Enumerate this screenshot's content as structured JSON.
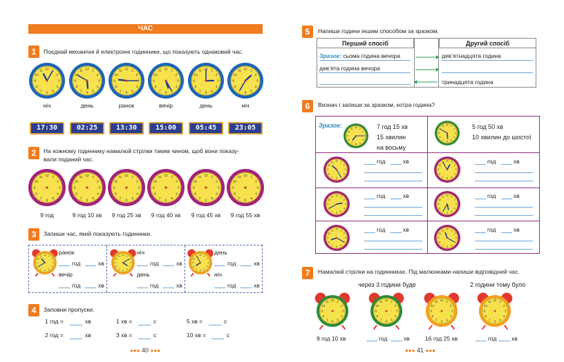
{
  "title": "ЧАС",
  "tasks": {
    "t1": {
      "num": "1",
      "text": "Поєднай механічні й електронні годинники, що показують однаковий час.",
      "labels": [
        "ніч",
        "день",
        "ранок",
        "вечір",
        "день",
        "ніч"
      ],
      "digital": [
        "17:30",
        "02:25",
        "13:30",
        "15:00",
        "05:45",
        "23:05"
      ]
    },
    "t2": {
      "num": "2",
      "text1": "На кожному годиннику намалюй стрілки таким чином, щоб вони показу-",
      "text2": "вали поданий час.",
      "labels": [
        "9 год",
        "9 год 10 хв",
        "9 год 25 хв",
        "9 год 40 хв",
        "9 год 45 хв",
        "9 год 55 хв"
      ]
    },
    "t3": {
      "num": "3",
      "text": "Запиши час, який показують годинники.",
      "boxes": [
        {
          "top": "ранок",
          "bottom": "вечір"
        },
        {
          "top": "ніч",
          "bottom": "день"
        },
        {
          "top": "день",
          "bottom": "ніч"
        }
      ],
      "god": "год",
      "khv": "хв"
    },
    "t4": {
      "num": "4",
      "text": "Заповни пропуски.",
      "rows": [
        [
          "1 год =",
          "хв",
          "1 хв =",
          "с",
          "5 хв =",
          "с"
        ],
        [
          "2 год =",
          "хв",
          "3 хв =",
          "с",
          "10 хв =",
          "с"
        ]
      ]
    },
    "t5": {
      "num": "5",
      "text": "Напиши години іншим способом за зразком.",
      "col1": "Перший спосіб",
      "col2": "Другий спосіб",
      "sample_label": "Зразок:",
      "r1c1": "сьома година вечора",
      "r1c2": "дев’ятнадцята година",
      "r2c1": "дев’ята година вечора",
      "r3c2": "тринадцята година"
    },
    "t6": {
      "num": "6",
      "text": "Визнач і запиши за зразком, котра година?",
      "sample_label": "Зразок:",
      "s1": [
        "7 год 15 хв",
        "15 хвилин",
        "на восьму"
      ],
      "s2": [
        "5 год 50 хв",
        "10 хвилин до шостої"
      ],
      "god": "год",
      "khv": "хв"
    },
    "t7": {
      "num": "7",
      "text": "Намалюй стрілки на годинниках. Під малюнками напиши відповідний час.",
      "cap1": "через 3 години буде",
      "cap2": "2 години тому було",
      "labels": [
        "9 год 10 хв",
        "год",
        "хв",
        "16 год 25 хв",
        "год",
        "хв"
      ]
    }
  },
  "pages": {
    "left": "40",
    "right": "41"
  },
  "colors": {
    "accent": "#f07c1e",
    "clock_face": "#f7e14d",
    "clock_rim_blue": "#1d66b5",
    "clock_rim_purple": "#a3247a"
  }
}
